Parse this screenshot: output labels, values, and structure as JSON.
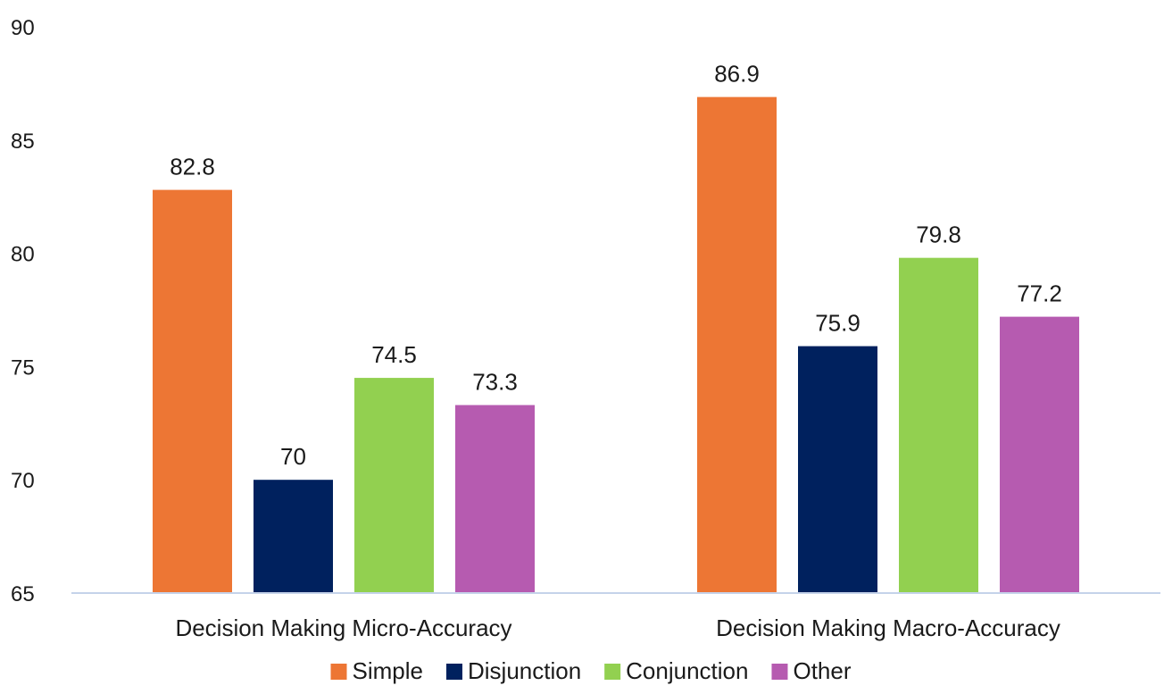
{
  "chart_data": {
    "type": "bar",
    "title": "",
    "xlabel": "",
    "ylabel": "",
    "ylim": [
      65,
      90
    ],
    "yticks": [
      65,
      70,
      75,
      80,
      85,
      90
    ],
    "categories": [
      "Decision Making Micro-Accuracy",
      "Decision Making Macro-Accuracy"
    ],
    "series": [
      {
        "name": "Simple",
        "color": "#ED7634",
        "values": [
          82.8,
          86.9
        ],
        "labels": [
          "82.8",
          "86.9"
        ]
      },
      {
        "name": "Disjunction",
        "color": "#00215E",
        "values": [
          70,
          75.9
        ],
        "labels": [
          "70",
          "75.9"
        ]
      },
      {
        "name": "Conjunction",
        "color": "#92D050",
        "values": [
          74.5,
          79.8
        ],
        "labels": [
          "74.5",
          "79.8"
        ]
      },
      {
        "name": "Other",
        "color": "#B65BB0",
        "values": [
          73.3,
          77.2
        ],
        "labels": [
          "73.3",
          "77.2"
        ]
      }
    ],
    "grid": false,
    "axis_color": "#C5D3EA",
    "legend_position": "bottom"
  }
}
